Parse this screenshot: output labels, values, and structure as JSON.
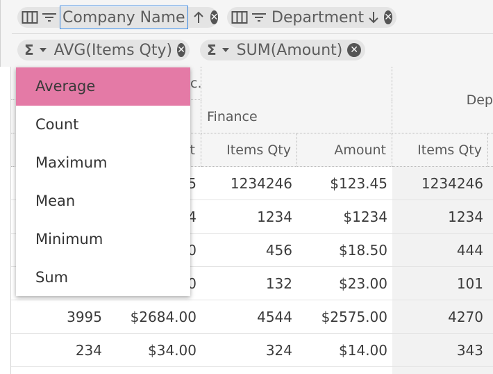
{
  "row_groups": [
    {
      "label": "Company Name",
      "sort": "ascending",
      "focused": true
    },
    {
      "label": "Department",
      "sort": "descending",
      "focused": false
    }
  ],
  "aggregations": [
    {
      "label": "AVG(Items Qty)"
    },
    {
      "label": "SUM(Amount)"
    }
  ],
  "column_headers": {
    "level1_partial": "c.",
    "level1_right": "Dep",
    "level2": "Finance",
    "measure_partial": "t",
    "finance_items_qty": "Items Qty",
    "finance_amount": "Amount",
    "right_items_qty": "Items Qty"
  },
  "rows": [
    {
      "c1": "",
      "c2": "5",
      "c3": "1234246",
      "c4": "$123.45",
      "c5": "1234246"
    },
    {
      "c1": "",
      "c2": "4",
      "c3": "1234",
      "c4": "$1234",
      "c5": "1234"
    },
    {
      "c1": "",
      "c2": "0",
      "c3": "456",
      "c4": "$18.50",
      "c5": "444"
    },
    {
      "c1": "",
      "c2": "0",
      "c3": "132",
      "c4": "$23.00",
      "c5": "101"
    },
    {
      "c1": "3995",
      "c2": "$2684.00",
      "c3": "4544",
      "c4": "$2575.00",
      "c5": "4270"
    },
    {
      "c1": "234",
      "c2": "$34.00",
      "c3": "324",
      "c4": "$14.00",
      "c5": "343"
    }
  ],
  "aggregation_menu": {
    "selected": "Average",
    "items": [
      "Average",
      "Count",
      "Maximum",
      "Mean",
      "Minimum",
      "Sum"
    ]
  },
  "colors": {
    "accent_selected": "#e47aa6",
    "focus_border": "#2f82e0"
  }
}
